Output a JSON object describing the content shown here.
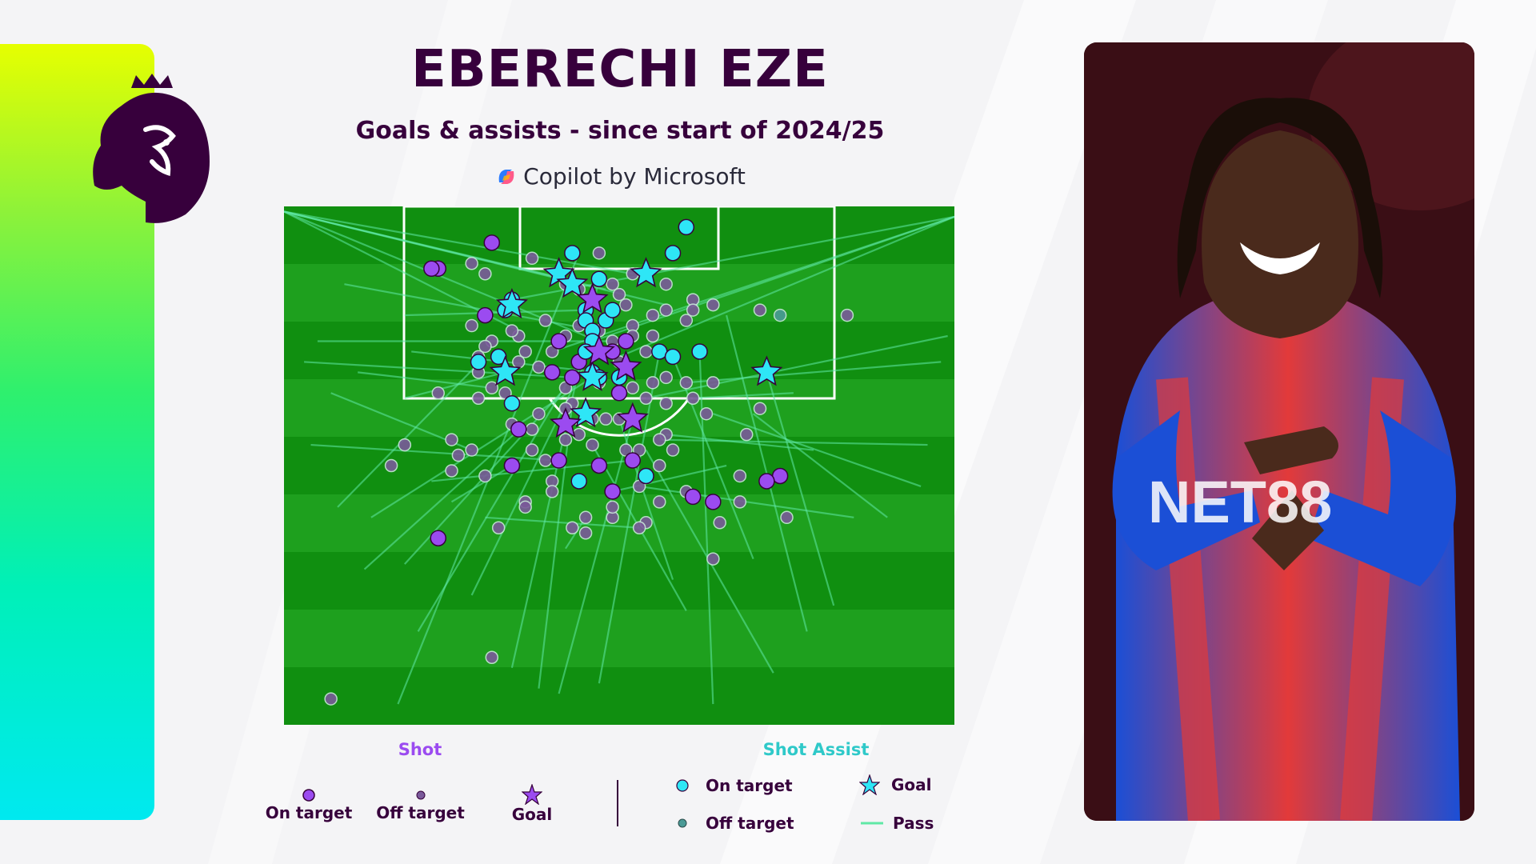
{
  "header": {
    "title": "EBERECHI EZE",
    "subtitle": "Goals & assists - since start of 2024/25",
    "sponsor": "Copilot by Microsoft"
  },
  "legend": {
    "shot_title": "Shot",
    "shot_assist_title": "Shot Assist",
    "shot_items": [
      "On target",
      "Off target",
      "Goal"
    ],
    "assist_items": [
      "On target",
      "Goal",
      "Off target",
      "Pass"
    ]
  },
  "colors": {
    "brand_purple": "#37003c",
    "shot_on_target": "#9b4bf0",
    "shot_off_target": "#7a5a9a",
    "assist_on_target": "#2ee6f6",
    "assist_off_target": "#4a9a96",
    "pass_line": "#5fe8a6",
    "pitch_dark": "#108f10",
    "pitch_light": "#1ea01e"
  },
  "icons": {
    "logo": "premier-league-lion-icon",
    "sponsor": "copilot-icon"
  },
  "chart_data": {
    "type": "scatter",
    "x_range": [
      0,
      100
    ],
    "y_range": [
      0,
      100
    ],
    "series": [
      {
        "name": "Shot",
        "kind": "on_target",
        "points": [
          [
            31,
            7
          ],
          [
            23,
            12
          ],
          [
            22,
            12
          ],
          [
            30,
            21
          ],
          [
            41,
            26
          ],
          [
            51,
            26
          ],
          [
            49,
            28
          ],
          [
            44,
            30
          ],
          [
            40,
            32
          ],
          [
            43,
            33
          ],
          [
            50,
            36
          ],
          [
            35,
            43
          ],
          [
            52,
            49
          ],
          [
            41,
            49
          ],
          [
            34,
            50
          ],
          [
            47,
            50
          ],
          [
            49,
            55
          ],
          [
            61,
            56
          ],
          [
            64,
            57
          ],
          [
            23,
            64
          ],
          [
            74,
            52
          ],
          [
            72,
            53
          ]
        ]
      },
      {
        "name": "Shot",
        "kind": "off_target",
        "points": [
          [
            37,
            10
          ],
          [
            47,
            9
          ],
          [
            28,
            11
          ],
          [
            30,
            13
          ],
          [
            42,
            15
          ],
          [
            44,
            16
          ],
          [
            47,
            14
          ],
          [
            52,
            13
          ],
          [
            49,
            15
          ],
          [
            57,
            15
          ],
          [
            61,
            18
          ],
          [
            50,
            17
          ],
          [
            51,
            19
          ],
          [
            33,
            20
          ],
          [
            57,
            20
          ],
          [
            60,
            22
          ],
          [
            55,
            21
          ],
          [
            52,
            23
          ],
          [
            44,
            23
          ],
          [
            39,
            22
          ],
          [
            28,
            23
          ],
          [
            35,
            25
          ],
          [
            42,
            25
          ],
          [
            47,
            24
          ],
          [
            49,
            26
          ],
          [
            54,
            28
          ],
          [
            55,
            25
          ],
          [
            50,
            30
          ],
          [
            38,
            31
          ],
          [
            40,
            28
          ],
          [
            36,
            28
          ],
          [
            29,
            29
          ],
          [
            29,
            32
          ],
          [
            31,
            35
          ],
          [
            42,
            35
          ],
          [
            47,
            34
          ],
          [
            43,
            38
          ],
          [
            60,
            34
          ],
          [
            55,
            34
          ],
          [
            54,
            37
          ],
          [
            42,
            39
          ],
          [
            29,
            37
          ],
          [
            33,
            36
          ],
          [
            23,
            36
          ],
          [
            34,
            42
          ],
          [
            37,
            43
          ],
          [
            48,
            41
          ],
          [
            50,
            41
          ],
          [
            57,
            44
          ],
          [
            25,
            45
          ],
          [
            28,
            47
          ],
          [
            18,
            46
          ],
          [
            16,
            50
          ],
          [
            25,
            51
          ],
          [
            30,
            52
          ],
          [
            40,
            53
          ],
          [
            37,
            47
          ],
          [
            39,
            49
          ],
          [
            42,
            45
          ],
          [
            44,
            44
          ],
          [
            46,
            46
          ],
          [
            51,
            47
          ],
          [
            53,
            47
          ],
          [
            56,
            45
          ],
          [
            58,
            47
          ],
          [
            56,
            50
          ],
          [
            60,
            55
          ],
          [
            63,
            40
          ],
          [
            54,
            61
          ],
          [
            56,
            57
          ],
          [
            65,
            61
          ],
          [
            64,
            68
          ],
          [
            71,
            39
          ],
          [
            69,
            44
          ],
          [
            61,
            20
          ],
          [
            64,
            19
          ],
          [
            71,
            20
          ],
          [
            84,
            21
          ],
          [
            53,
            54
          ],
          [
            49,
            60
          ],
          [
            45,
            60
          ],
          [
            40,
            55
          ],
          [
            43,
            62
          ],
          [
            45,
            63
          ],
          [
            49,
            58
          ],
          [
            53,
            62
          ],
          [
            36,
            57
          ],
          [
            32,
            62
          ],
          [
            36,
            58
          ],
          [
            68,
            52
          ],
          [
            68,
            57
          ],
          [
            75,
            60
          ],
          [
            64,
            34
          ],
          [
            61,
            37
          ],
          [
            57,
            38
          ],
          [
            31,
            26
          ],
          [
            30,
            27
          ],
          [
            34,
            24
          ],
          [
            52,
            25
          ],
          [
            35,
            30
          ],
          [
            52,
            35
          ],
          [
            57,
            33
          ],
          [
            26,
            48
          ],
          [
            38,
            40
          ],
          [
            46,
            41
          ],
          [
            31,
            87
          ],
          [
            7,
            95
          ]
        ]
      },
      {
        "name": "Shot Assist",
        "kind": "on_target",
        "points": [
          [
            60,
            4
          ],
          [
            58,
            9
          ],
          [
            43,
            9
          ],
          [
            47,
            14
          ],
          [
            34,
            18
          ],
          [
            33,
            20
          ],
          [
            45,
            20
          ],
          [
            45,
            22
          ],
          [
            48,
            22
          ],
          [
            49,
            20
          ],
          [
            46,
            24
          ],
          [
            46,
            26
          ],
          [
            45,
            28
          ],
          [
            56,
            28
          ],
          [
            58,
            29
          ],
          [
            62,
            28
          ],
          [
            46,
            32
          ],
          [
            47,
            33
          ],
          [
            50,
            33
          ],
          [
            29,
            30
          ],
          [
            32,
            29
          ],
          [
            34,
            38
          ],
          [
            54,
            52
          ],
          [
            44,
            53
          ]
        ]
      },
      {
        "name": "Shot Assist",
        "kind": "off_target",
        "points": [
          [
            74,
            21
          ]
        ]
      },
      {
        "name": "Shot Assist",
        "kind": "goal",
        "points": [
          [
            41,
            13
          ],
          [
            43,
            15
          ],
          [
            54,
            13
          ],
          [
            34,
            19
          ],
          [
            33,
            32
          ],
          [
            46,
            33
          ],
          [
            45,
            40
          ],
          [
            72,
            32
          ]
        ]
      },
      {
        "name": "Shot",
        "kind": "goal",
        "points": [
          [
            46,
            18
          ],
          [
            47,
            28
          ],
          [
            51,
            31
          ],
          [
            52,
            41
          ],
          [
            42,
            42
          ]
        ]
      }
    ],
    "passes": [
      [
        [
          0,
          1
        ],
        [
          42,
          14
        ]
      ],
      [
        [
          0,
          1
        ],
        [
          48,
          16
        ]
      ],
      [
        [
          0,
          1
        ],
        [
          45,
          25
        ]
      ],
      [
        [
          0,
          1
        ],
        [
          52,
          13
        ]
      ],
      [
        [
          0,
          1
        ],
        [
          35,
          24
        ]
      ],
      [
        [
          0,
          1
        ],
        [
          57,
          19
        ]
      ],
      [
        [
          100,
          2
        ],
        [
          46,
          26
        ]
      ],
      [
        [
          100,
          2
        ],
        [
          40,
          28
        ]
      ],
      [
        [
          100,
          2
        ],
        [
          50,
          29
        ]
      ],
      [
        [
          100,
          2
        ],
        [
          34,
          18
        ]
      ],
      [
        [
          18,
          21
        ],
        [
          45,
          20
        ]
      ],
      [
        [
          9,
          15
        ],
        [
          47,
          24
        ]
      ],
      [
        [
          5,
          26
        ],
        [
          49,
          26
        ]
      ],
      [
        [
          19,
          28
        ],
        [
          47,
          32
        ]
      ],
      [
        [
          18,
          37
        ],
        [
          33,
          32
        ]
      ],
      [
        [
          8,
          58
        ],
        [
          30,
          29
        ]
      ],
      [
        [
          13,
          60
        ],
        [
          46,
          33
        ]
      ],
      [
        [
          18,
          69
        ],
        [
          42,
          35
        ]
      ],
      [
        [
          28,
          75
        ],
        [
          48,
          22
        ]
      ],
      [
        [
          20,
          82
        ],
        [
          45,
          28
        ]
      ],
      [
        [
          34,
          89
        ],
        [
          47,
          14
        ]
      ],
      [
        [
          38,
          93
        ],
        [
          43,
          38
        ]
      ],
      [
        [
          17,
          96
        ],
        [
          44,
          9
        ]
      ],
      [
        [
          41,
          94
        ],
        [
          52,
          41
        ]
      ],
      [
        [
          47,
          92
        ],
        [
          56,
          28
        ]
      ],
      [
        [
          64,
          96
        ],
        [
          62,
          28
        ]
      ],
      [
        [
          78,
          82
        ],
        [
          66,
          21
        ]
      ],
      [
        [
          70,
          68
        ],
        [
          58,
          29
        ]
      ],
      [
        [
          82,
          77
        ],
        [
          72,
          32
        ]
      ],
      [
        [
          90,
          60
        ],
        [
          70,
          40
        ]
      ],
      [
        [
          95,
          54
        ],
        [
          64,
          40
        ]
      ],
      [
        [
          96,
          46
        ],
        [
          56,
          45
        ]
      ],
      [
        [
          98,
          30
        ],
        [
          60,
          34
        ]
      ],
      [
        [
          99,
          25
        ],
        [
          54,
          37
        ]
      ],
      [
        [
          85,
          60
        ],
        [
          53,
          54
        ]
      ],
      [
        [
          58,
          72
        ],
        [
          50,
          41
        ]
      ],
      [
        [
          60,
          78
        ],
        [
          46,
          46
        ]
      ],
      [
        [
          73,
          90
        ],
        [
          54,
          47
        ]
      ],
      [
        [
          12,
          70
        ],
        [
          36,
          42
        ]
      ],
      [
        [
          25,
          57
        ],
        [
          34,
          50
        ]
      ],
      [
        [
          4,
          46
        ],
        [
          41,
          49
        ]
      ],
      [
        [
          7,
          36
        ],
        [
          28,
          47
        ]
      ],
      [
        [
          11,
          32
        ],
        [
          31,
          35
        ]
      ],
      [
        [
          3,
          30
        ],
        [
          43,
          33
        ]
      ],
      [
        [
          22,
          53
        ],
        [
          52,
          49
        ]
      ],
      [
        [
          30,
          60
        ],
        [
          53,
          62
        ]
      ],
      [
        [
          42,
          66
        ],
        [
          45,
          60
        ]
      ],
      [
        [
          66,
          50
        ],
        [
          49,
          55
        ]
      ],
      [
        [
          79,
          47
        ],
        [
          57,
          44
        ]
      ],
      [
        [
          76,
          36
        ],
        [
          61,
          37
        ]
      ]
    ]
  }
}
